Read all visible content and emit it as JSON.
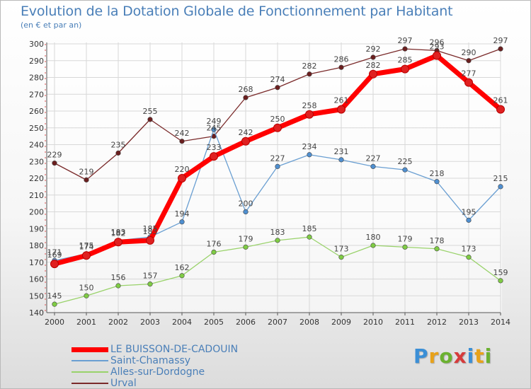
{
  "header": {
    "title": "Evolution de la Dotation Globale de Fonctionnement par Habitant",
    "subtitle": "(en € et par an)"
  },
  "logo": {
    "text": "Proxiti",
    "colors": [
      "#3b8fd6",
      "#e8a21a",
      "#6bb130",
      "#d63b3b",
      "#3b8fd6",
      "#e8a21a",
      "#6bb130"
    ]
  },
  "chart_data": {
    "type": "line",
    "title": "Evolution de la Dotation Globale de Fonctionnement par Habitant",
    "subtitle": "(en € et par an)",
    "xlabel": "",
    "ylabel": "",
    "x": [
      "2000",
      "2001",
      "2002",
      "2003",
      "2004",
      "2005",
      "2006",
      "2007",
      "2008",
      "2009",
      "2010",
      "2011",
      "2012",
      "2013",
      "2014"
    ],
    "ylim": [
      140,
      300
    ],
    "yticks": [
      140,
      150,
      160,
      170,
      180,
      190,
      200,
      210,
      220,
      230,
      240,
      250,
      260,
      270,
      280,
      290,
      300
    ],
    "grid": true,
    "legend_position": "bottom-left",
    "series": [
      {
        "name": "LE BUISSON-DE-CADOUIN",
        "color": "#ff0000",
        "marker_fill": "#e02020",
        "values": [
          169,
          174,
          182,
          183,
          220,
          233,
          242,
          250,
          258,
          261,
          282,
          285,
          293,
          277,
          261
        ]
      },
      {
        "name": "Saint-Chamassy",
        "color": "#6a9fd2",
        "marker_fill": "#4f8fd0",
        "values": [
          171,
          175,
          183,
          185,
          194,
          249,
          200,
          227,
          234,
          231,
          227,
          225,
          218,
          195,
          215
        ]
      },
      {
        "name": "Alles-sur-Dordogne",
        "color": "#99d26a",
        "marker_fill": "#7fcc44",
        "values": [
          145,
          150,
          156,
          157,
          162,
          176,
          179,
          183,
          185,
          173,
          180,
          179,
          178,
          173,
          159
        ]
      },
      {
        "name": "Urval",
        "color": "#7a2a2a",
        "marker_fill": "#6b1f1f",
        "values": [
          229,
          219,
          235,
          255,
          242,
          245,
          268,
          274,
          282,
          286,
          292,
          297,
          296,
          290,
          297
        ]
      }
    ]
  }
}
